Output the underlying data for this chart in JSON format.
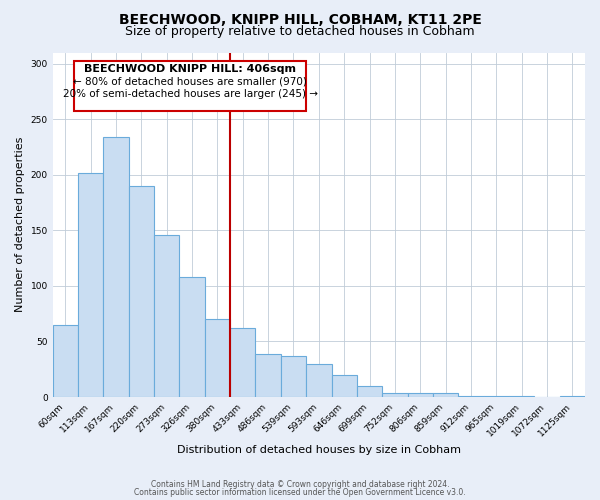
{
  "title": "BEECHWOOD, KNIPP HILL, COBHAM, KT11 2PE",
  "subtitle": "Size of property relative to detached houses in Cobham",
  "xlabel": "Distribution of detached houses by size in Cobham",
  "ylabel": "Number of detached properties",
  "bar_labels": [
    "60sqm",
    "113sqm",
    "167sqm",
    "220sqm",
    "273sqm",
    "326sqm",
    "380sqm",
    "433sqm",
    "486sqm",
    "539sqm",
    "593sqm",
    "646sqm",
    "699sqm",
    "752sqm",
    "806sqm",
    "859sqm",
    "912sqm",
    "965sqm",
    "1019sqm",
    "1072sqm",
    "1125sqm"
  ],
  "bar_values": [
    65,
    202,
    234,
    190,
    146,
    108,
    70,
    62,
    39,
    37,
    30,
    20,
    10,
    4,
    4,
    4,
    1,
    1,
    1,
    0,
    1
  ],
  "bar_color": "#c9ddf2",
  "bar_edge_color": "#6aabdb",
  "vline_x_idx": 6.5,
  "vline_color": "#bb0000",
  "annotation_title": "BEECHWOOD KNIPP HILL: 406sqm",
  "annotation_line1": "← 80% of detached houses are smaller (970)",
  "annotation_line2": "20% of semi-detached houses are larger (245) →",
  "annotation_box_color": "#ffffff",
  "annotation_box_edge": "#cc0000",
  "ylim": [
    0,
    310
  ],
  "yticks": [
    0,
    50,
    100,
    150,
    200,
    250,
    300
  ],
  "footer1": "Contains HM Land Registry data © Crown copyright and database right 2024.",
  "footer2": "Contains public sector information licensed under the Open Government Licence v3.0.",
  "bg_color": "#e8eef8",
  "plot_bg_color": "#ffffff",
  "title_fontsize": 10,
  "subtitle_fontsize": 9,
  "ylabel_fontsize": 8,
  "xlabel_fontsize": 8,
  "tick_fontsize": 6.5,
  "footer_fontsize": 5.5,
  "ann_title_fontsize": 8,
  "ann_text_fontsize": 7.5
}
